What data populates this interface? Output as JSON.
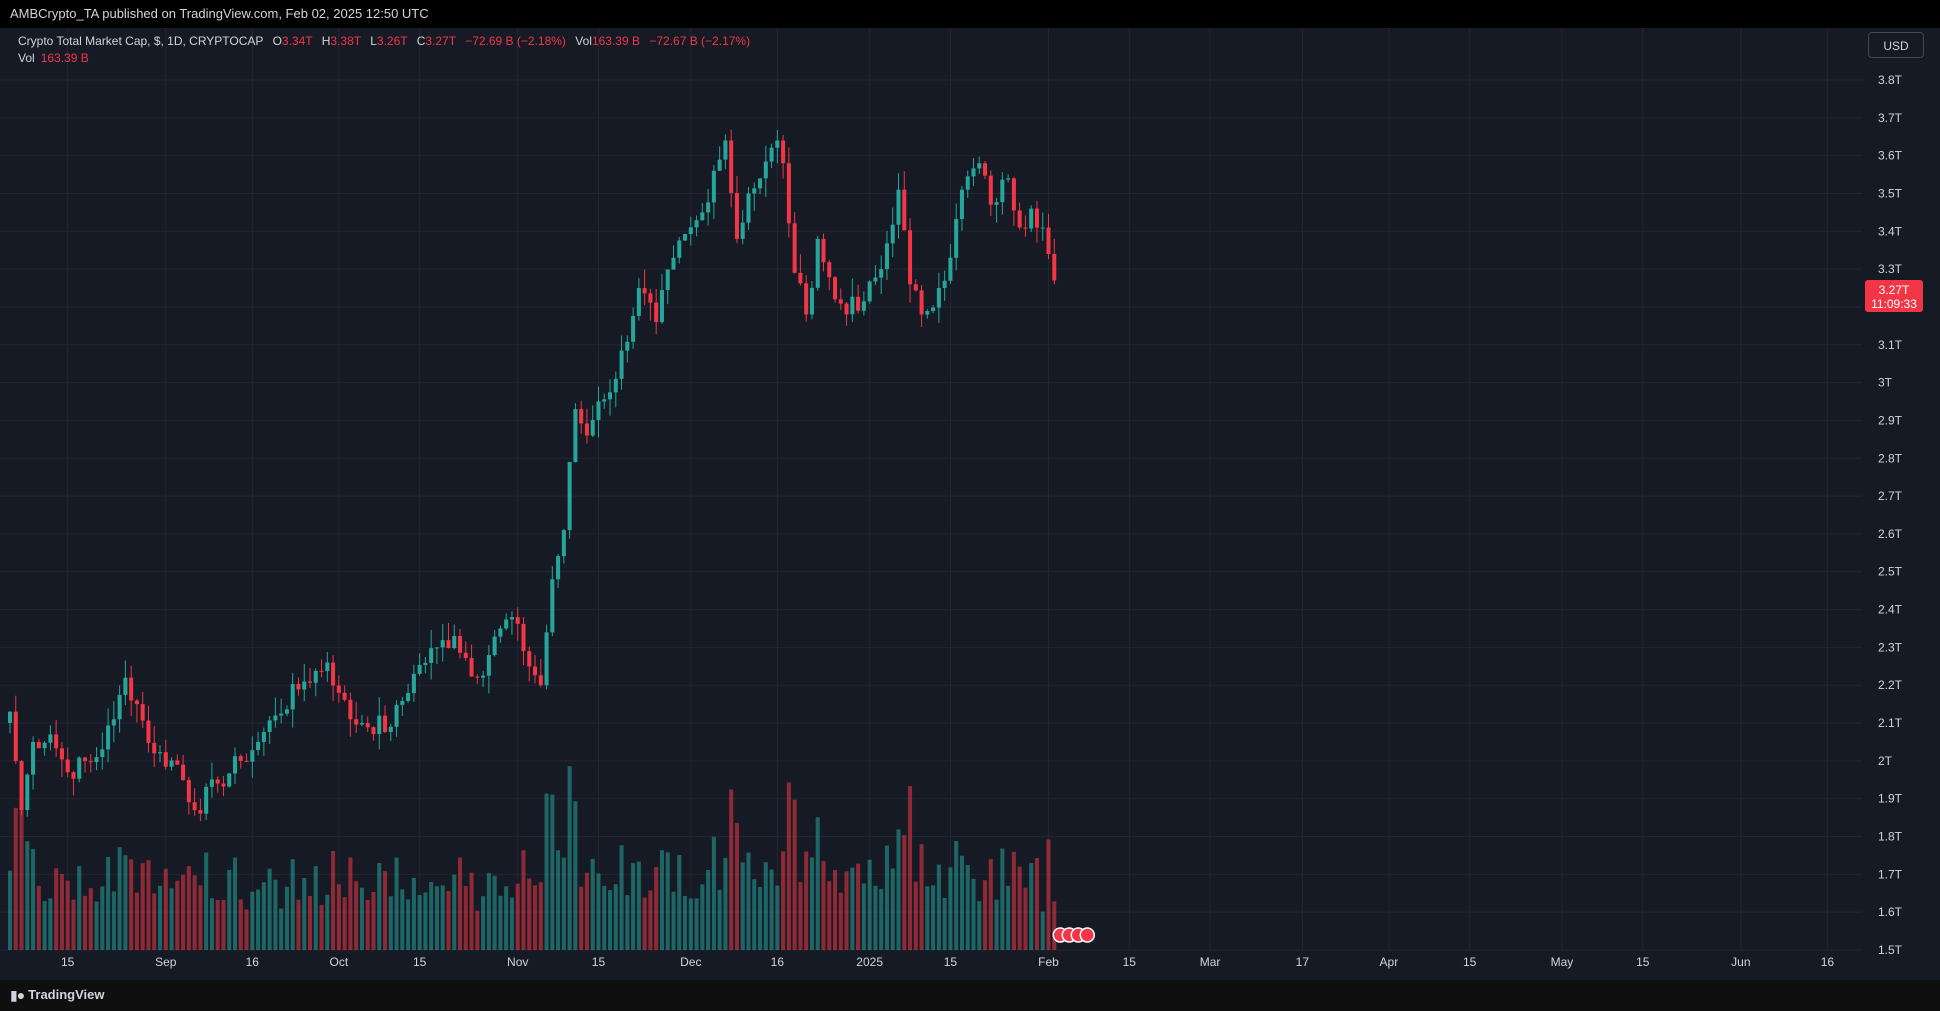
{
  "header": {
    "published": "AMBCrypto_TA published on TradingView.com, Feb 02, 2025 12:50 UTC"
  },
  "legend": {
    "symbol": "Crypto Total Market Cap, $, 1D, CRYPTOCAP",
    "open_label": "O",
    "open": "3.34T",
    "high_label": "H",
    "high": "3.38T",
    "low_label": "L",
    "low": "3.26T",
    "close_label": "C",
    "close": "3.27T",
    "change": "−72.69 B (−2.18%)",
    "vol_label": "Vol",
    "vol": "163.39 B",
    "vol_change": "−72.67 B (−2.17%)"
  },
  "volume_legend": {
    "label": "Vol",
    "value": "163.39 B"
  },
  "currency_button": "USD",
  "price_tag": {
    "value": "3.27T",
    "countdown": "11:09:33"
  },
  "footer": {
    "brand": "TradingView"
  },
  "colors": {
    "up": "#26a69a",
    "down": "#f23645",
    "background": "#161a25",
    "grid": "#232632"
  },
  "chart_data": {
    "type": "candlestick",
    "series_name": "Crypto Total Market Cap",
    "y_axis": {
      "ticks": [
        "3.8T",
        "3.7T",
        "3.6T",
        "3.5T",
        "3.4T",
        "3.3T",
        "3.2T",
        "3.1T",
        "3T",
        "2.9T",
        "2.8T",
        "2.7T",
        "2.6T",
        "2.5T",
        "2.4T",
        "2.3T",
        "2.2T",
        "2.1T",
        "2T",
        "1.9T",
        "1.8T",
        "1.7T",
        "1.6T",
        "1.5T"
      ],
      "range": [
        1.5,
        3.8
      ],
      "unit": "T"
    },
    "x_axis": {
      "ticks": [
        "15",
        "Sep",
        "16",
        "Oct",
        "15",
        "Nov",
        "15",
        "Dec",
        "16",
        "2025",
        "15",
        "Feb",
        "15",
        "Mar",
        "17",
        "Apr",
        "15",
        "May",
        "15",
        "Jun",
        "16"
      ],
      "range": [
        "2024-08-05",
        "2025-06-22"
      ]
    },
    "grid": true,
    "anchors": [
      [
        "2024-08-05",
        2.13
      ],
      [
        "2024-08-07",
        1.87
      ],
      [
        "2024-08-09",
        2.05
      ],
      [
        "2024-08-12",
        2.07
      ],
      [
        "2024-08-15",
        1.97
      ],
      [
        "2024-08-20",
        2.01
      ],
      [
        "2024-08-23",
        2.11
      ],
      [
        "2024-08-25",
        2.22
      ],
      [
        "2024-08-27",
        2.15
      ],
      [
        "2024-08-30",
        2.02
      ],
      [
        "2024-09-03",
        1.99
      ],
      [
        "2024-09-06",
        1.87
      ],
      [
        "2024-09-10",
        1.94
      ],
      [
        "2024-09-14",
        2.0
      ],
      [
        "2024-09-17",
        2.05
      ],
      [
        "2024-09-20",
        2.12
      ],
      [
        "2024-09-25",
        2.21
      ],
      [
        "2024-09-29",
        2.26
      ],
      [
        "2024-10-01",
        2.18
      ],
      [
        "2024-10-03",
        2.11
      ],
      [
        "2024-10-05",
        2.1
      ],
      [
        "2024-10-10",
        2.09
      ],
      [
        "2024-10-14",
        2.23
      ],
      [
        "2024-10-18",
        2.3
      ],
      [
        "2024-10-21",
        2.33
      ],
      [
        "2024-10-25",
        2.22
      ],
      [
        "2024-10-29",
        2.35
      ],
      [
        "2024-10-31",
        2.38
      ],
      [
        "2024-11-02",
        2.29
      ],
      [
        "2024-11-05",
        2.2
      ],
      [
        "2024-11-07",
        2.48
      ],
      [
        "2024-11-09",
        2.61
      ],
      [
        "2024-11-11",
        2.93
      ],
      [
        "2024-11-13",
        2.86
      ],
      [
        "2024-11-15",
        2.95
      ],
      [
        "2024-11-18",
        3.01
      ],
      [
        "2024-11-22",
        3.25
      ],
      [
        "2024-11-25",
        3.16
      ],
      [
        "2024-11-28",
        3.33
      ],
      [
        "2024-12-03",
        3.45
      ],
      [
        "2024-12-05",
        3.56
      ],
      [
        "2024-12-07",
        3.64
      ],
      [
        "2024-12-09",
        3.38
      ],
      [
        "2024-12-11",
        3.5
      ],
      [
        "2024-12-13",
        3.54
      ],
      [
        "2024-12-16",
        3.64
      ],
      [
        "2024-12-17",
        3.58
      ],
      [
        "2024-12-19",
        3.29
      ],
      [
        "2024-12-21",
        3.18
      ],
      [
        "2024-12-23",
        3.38
      ],
      [
        "2024-12-26",
        3.22
      ],
      [
        "2024-12-30",
        3.19
      ],
      [
        "2025-01-03",
        3.3
      ],
      [
        "2025-01-06",
        3.51
      ],
      [
        "2025-01-08",
        3.26
      ],
      [
        "2025-01-10",
        3.18
      ],
      [
        "2025-01-13",
        3.25
      ],
      [
        "2025-01-15",
        3.33
      ],
      [
        "2025-01-17",
        3.51
      ],
      [
        "2025-01-20",
        3.58
      ],
      [
        "2025-01-22",
        3.47
      ],
      [
        "2025-01-25",
        3.54
      ],
      [
        "2025-01-27",
        3.41
      ],
      [
        "2025-01-29",
        3.46
      ],
      [
        "2025-01-31",
        3.41
      ],
      [
        "2025-02-01",
        3.34
      ],
      [
        "2025-02-02",
        3.27
      ]
    ],
    "last": {
      "date": "2025-02-02",
      "open": 3.34,
      "high": 3.38,
      "low": 3.26,
      "close": 3.27,
      "volume_B": 163.39
    },
    "volume_range_B": [
      0,
      800
    ]
  }
}
